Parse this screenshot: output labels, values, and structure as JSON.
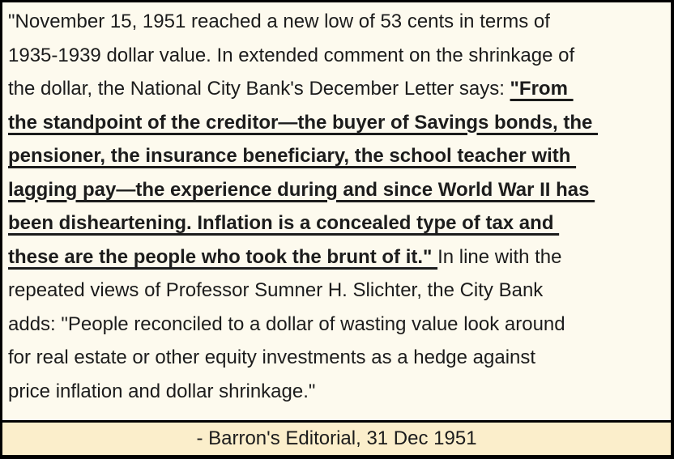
{
  "colors": {
    "card_background": "#fdfaee",
    "footer_background": "#fbeecb",
    "border": "#000000",
    "text": "#1c1c1c"
  },
  "quote": {
    "lead": "\"November 15, 1951 reached a new low of 53 cents in terms of\n1935-1939 dollar value. In extended comment on the shrinkage of\nthe dollar, the National City Bank's December Letter says: ",
    "emphasis": "\"From \nthe standpoint of the creditor—the buyer of Savings bonds, the \npensioner, the insurance beneficiary, the school teacher with \nlagging pay—the experience during and since World War II has \nbeen disheartening. Inflation is a concealed type of tax and \nthese are the people who took the brunt of it.\" ",
    "tail": "In line with the\nrepeated views of Professor Sumner H. Slichter, the City Bank\nadds: \"People reconciled to a dollar of wasting value look around\nfor real estate or other equity investments as a hedge against\nprice inflation and dollar shrinkage.\""
  },
  "footer": {
    "attribution": "- Barron's Editorial, 31 Dec 1951"
  }
}
